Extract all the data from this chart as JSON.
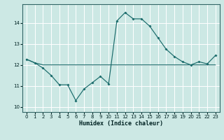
{
  "xlabel": "Humidex (Indice chaleur)",
  "bg_color": "#cce8e4",
  "line_color": "#1a6b6b",
  "grid_color": "#ffffff",
  "xlim": [
    -0.5,
    23.5
  ],
  "ylim": [
    9.75,
    14.9
  ],
  "yticks": [
    10,
    11,
    12,
    13,
    14
  ],
  "xticks": [
    0,
    1,
    2,
    3,
    4,
    5,
    6,
    7,
    8,
    9,
    10,
    11,
    12,
    13,
    14,
    15,
    16,
    17,
    18,
    19,
    20,
    21,
    22,
    23
  ],
  "line1_x": [
    0,
    1,
    2,
    3,
    4,
    5,
    6,
    7,
    8,
    9,
    10,
    11,
    12,
    13,
    14,
    15,
    16,
    17,
    18,
    19,
    20,
    21,
    22,
    23
  ],
  "line1_y": [
    12.27,
    12.1,
    12.0,
    12.0,
    12.0,
    12.0,
    12.0,
    12.0,
    12.0,
    12.0,
    12.0,
    12.0,
    12.0,
    12.0,
    12.0,
    12.0,
    12.0,
    12.0,
    12.0,
    12.0,
    12.0,
    12.0,
    12.0,
    12.0
  ],
  "line2_x": [
    0,
    1,
    2,
    3,
    4,
    5,
    6,
    7,
    8,
    9,
    10,
    11,
    12,
    13,
    14,
    15,
    16,
    17,
    18,
    19,
    20,
    21,
    22,
    23
  ],
  "line2_y": [
    12.27,
    12.1,
    11.85,
    11.5,
    11.05,
    11.05,
    10.3,
    10.85,
    11.15,
    11.45,
    11.1,
    14.1,
    14.5,
    14.2,
    14.2,
    13.85,
    13.3,
    12.75,
    12.4,
    12.15,
    12.0,
    12.15,
    12.05,
    12.45
  ]
}
